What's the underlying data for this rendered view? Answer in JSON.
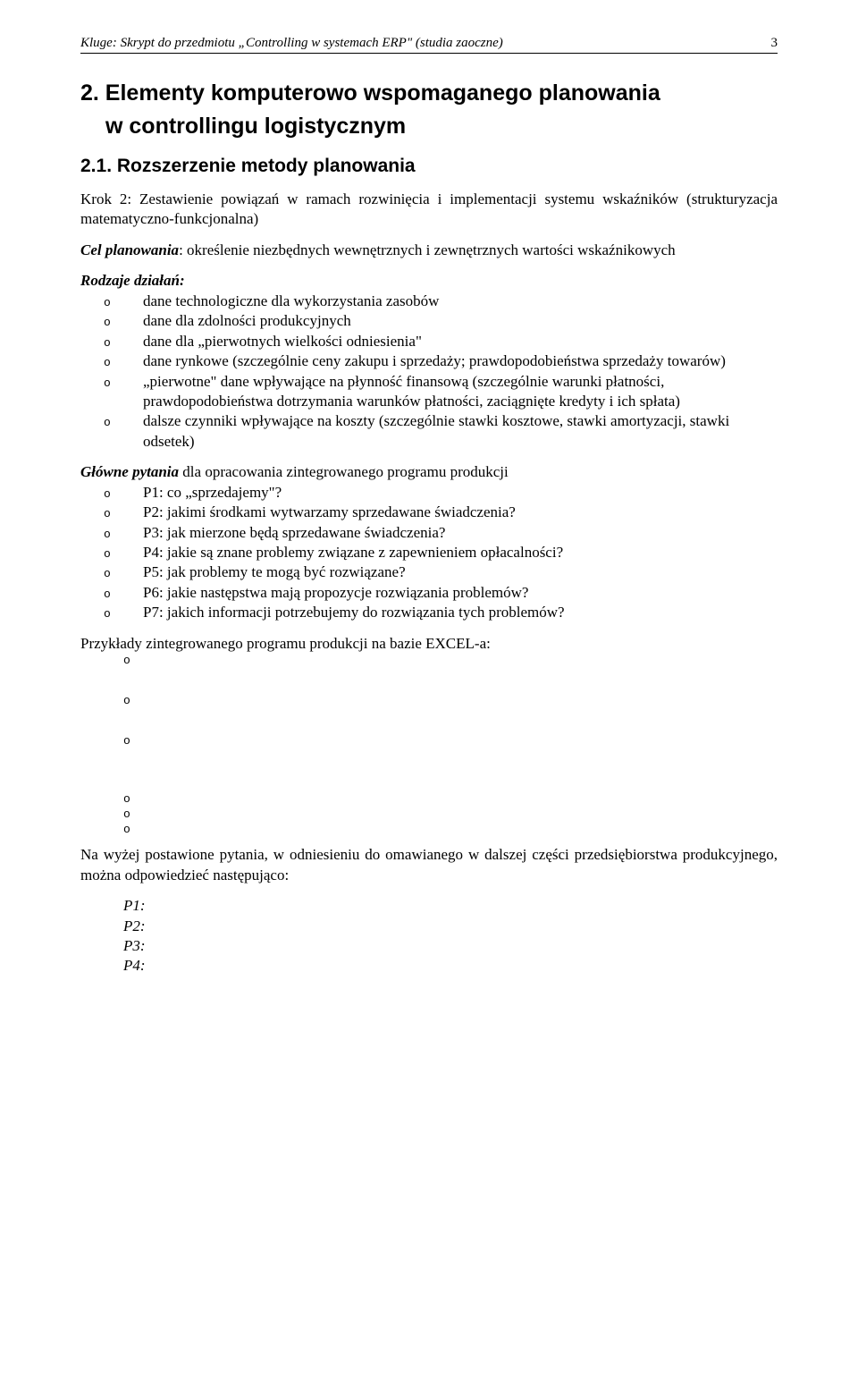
{
  "header": {
    "left": "Kluge: Skrypt do przedmiotu „Controlling w systemach ERP\" (studia zaoczne)",
    "page_number": "3"
  },
  "h1_line1": "2. Elementy komputerowo wspomaganego planowania",
  "h1_line2": "w controllingu logistycznym",
  "h2": "2.1. Rozszerzenie metody planowania",
  "para1": "Krok 2: Zestawienie powiązań w ramach rozwinięcia i implementacji systemu wskaźników (strukturyzacja matematyczno-funkcjonalna)",
  "para2_prefix": "Cel planowania",
  "para2_rest": ": określenie niezbędnych wewnętrznych i zewnętrznych wartości wskaźnikowych",
  "rodzaje_label": "Rodzaje działań:",
  "rodzaje_items": [
    "dane technologiczne dla wykorzystania zasobów",
    "dane dla zdolności produkcyjnych",
    "dane dla „pierwotnych wielkości odniesienia\"",
    "dane rynkowe (szczególnie ceny zakupu i sprzedaży; prawdopodobieństwa sprzedaży towarów)",
    "„pierwotne\" dane wpływające na płynność finansową (szczególnie warunki płatności, prawdopodobieństwa dotrzymania warunków płatności, zaciągnięte kredyty i ich spłata)",
    "dalsze czynniki wpływające na koszty (szczególnie stawki kosztowe, stawki amortyzacji, stawki odsetek)"
  ],
  "glowne_prefix": "Główne pytania",
  "glowne_rest": " dla opracowania zintegrowanego programu produkcji",
  "glowne_items": [
    "P1: co „sprzedajemy\"?",
    "P2: jakimi środkami wytwarzamy sprzedawane świadczenia?",
    "P3: jak mierzone będą sprzedawane świadczenia?",
    "P4: jakie są znane problemy związane z zapewnieniem opłacalności?",
    "P5: jak problemy te mogą być rozwiązane?",
    "P6: jakie następstwa mają propozycje rozwiązania problemów?",
    "P7: jakich informacji potrzebujemy do rozwiązania tych problemów?"
  ],
  "przyklady_text": "Przykłady zintegrowanego programu produkcji na bazie EXCEL-a:",
  "na_wyzej": "Na wyżej postawione pytania, w odniesieniu do omawianego w dalszej części przedsiębiorstwa produkcyjnego, można odpowiedzieć następująco:",
  "p_list": [
    "P1:",
    "P2:",
    "P3:",
    "P4:"
  ]
}
